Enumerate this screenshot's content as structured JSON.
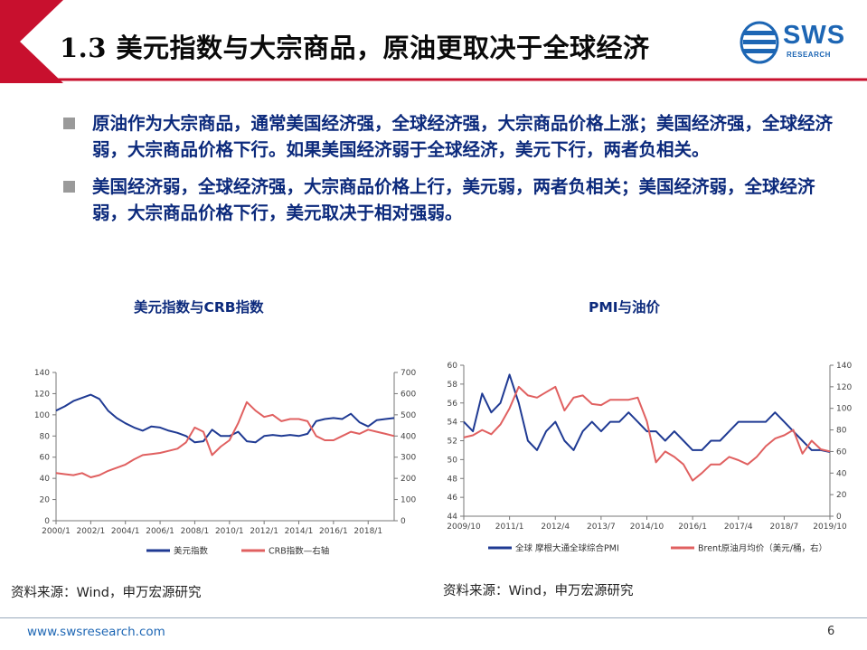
{
  "header": {
    "title": "1.3 美元指数与大宗商品，原油更取决于全球经济"
  },
  "logo": {
    "text": "SWS",
    "sub": "RESEARCH"
  },
  "bullets": [
    "原油作为大宗商品，通常美国经济强，全球经济强，大宗商品价格上涨；美国经济强，全球经济弱，大宗商品价格下行。如果美国经济弱于全球经济，美元下行，两者负相关。",
    "美国经济弱，全球经济强，大宗商品价格上行，美元弱，两者负相关；美国经济弱，全球经济弱，大宗商品价格下行，美元取决于相对强弱。"
  ],
  "colors": {
    "navy": "#1f3a93",
    "red": "#e06060",
    "blue_text": "#0c2a7c",
    "header_red": "#c8102e",
    "logo_blue": "#1d66b4"
  },
  "chart_data": [
    {
      "type": "line",
      "title": "美元指数与CRB指数",
      "x_ticks": [
        "2000/1",
        "2002/1",
        "2004/1",
        "2006/1",
        "2008/1",
        "2010/1",
        "2012/1",
        "2014/1",
        "2016/1",
        "2018/1"
      ],
      "x_range": [
        2000.0,
        2019.5
      ],
      "y_left": {
        "ticks": [
          0,
          20,
          40,
          60,
          80,
          100,
          120,
          140
        ],
        "range": [
          0,
          140
        ]
      },
      "y_right": {
        "ticks": [
          0,
          100,
          200,
          300,
          400,
          500,
          600,
          700
        ],
        "range": [
          0,
          700
        ]
      },
      "legend_position": "bottom",
      "series": [
        {
          "name": "美元指数",
          "axis": "left",
          "color": "#1f3a93",
          "x": [
            2000.0,
            2000.5,
            2001.0,
            2001.5,
            2002.0,
            2002.5,
            2003.0,
            2003.5,
            2004.0,
            2004.5,
            2005.0,
            2005.5,
            2006.0,
            2006.5,
            2007.0,
            2007.5,
            2008.0,
            2008.5,
            2009.0,
            2009.5,
            2010.0,
            2010.5,
            2011.0,
            2011.5,
            2012.0,
            2012.5,
            2013.0,
            2013.5,
            2014.0,
            2014.5,
            2015.0,
            2015.5,
            2016.0,
            2016.5,
            2017.0,
            2017.5,
            2018.0,
            2018.5,
            2019.0,
            2019.5
          ],
          "values": [
            104,
            108,
            113,
            116,
            119,
            115,
            104,
            97,
            92,
            88,
            85,
            89,
            88,
            85,
            83,
            80,
            74,
            75,
            86,
            80,
            80,
            84,
            75,
            74,
            80,
            81,
            80,
            81,
            80,
            82,
            94,
            96,
            97,
            96,
            101,
            93,
            89,
            95,
            96,
            97
          ]
        },
        {
          "name": "CRB指数—右轴",
          "axis": "right",
          "color": "#e06060",
          "x": [
            2000.0,
            2000.5,
            2001.0,
            2001.5,
            2002.0,
            2002.5,
            2003.0,
            2003.5,
            2004.0,
            2004.5,
            2005.0,
            2005.5,
            2006.0,
            2006.5,
            2007.0,
            2007.5,
            2008.0,
            2008.5,
            2009.0,
            2009.5,
            2010.0,
            2010.5,
            2011.0,
            2011.5,
            2012.0,
            2012.5,
            2013.0,
            2013.5,
            2014.0,
            2014.5,
            2015.0,
            2015.5,
            2016.0,
            2016.5,
            2017.0,
            2017.5,
            2018.0,
            2018.5,
            2019.0,
            2019.5
          ],
          "values": [
            225,
            220,
            215,
            225,
            205,
            215,
            235,
            250,
            265,
            290,
            310,
            315,
            320,
            330,
            340,
            370,
            440,
            420,
            310,
            350,
            380,
            460,
            560,
            520,
            490,
            500,
            470,
            480,
            480,
            470,
            400,
            380,
            380,
            400,
            420,
            410,
            430,
            420,
            410,
            400
          ]
        }
      ],
      "source": "资料来源：Wind，申万宏源研究"
    },
    {
      "type": "line",
      "title": "PMI与油价",
      "x_ticks": [
        "2009/10",
        "2011/1",
        "2012/4",
        "2013/7",
        "2014/10",
        "2016/1",
        "2017/4",
        "2018/7",
        "2019/10"
      ],
      "x_range": [
        2009.75,
        2019.75
      ],
      "y_left": {
        "ticks": [
          44,
          46,
          48,
          50,
          52,
          54,
          56,
          58,
          60
        ],
        "range": [
          44,
          60
        ]
      },
      "y_right": {
        "ticks": [
          0,
          20,
          40,
          60,
          80,
          100,
          120,
          140
        ],
        "range": [
          0,
          140
        ]
      },
      "legend_position": "bottom",
      "series": [
        {
          "name": "全球 摩根大通全球综合PMI",
          "axis": "left",
          "color": "#1f3a93",
          "x": [
            2009.75,
            2010.0,
            2010.25,
            2010.5,
            2010.75,
            2011.0,
            2011.25,
            2011.5,
            2011.75,
            2012.0,
            2012.25,
            2012.5,
            2012.75,
            2013.0,
            2013.25,
            2013.5,
            2013.75,
            2014.0,
            2014.25,
            2014.5,
            2014.75,
            2015.0,
            2015.25,
            2015.5,
            2015.75,
            2016.0,
            2016.25,
            2016.5,
            2016.75,
            2017.0,
            2017.25,
            2017.5,
            2017.75,
            2018.0,
            2018.25,
            2018.5,
            2018.75,
            2019.0,
            2019.25,
            2019.5,
            2019.75
          ],
          "values": [
            54,
            53,
            57,
            55,
            56,
            59,
            56,
            52,
            51,
            53,
            54,
            52,
            51,
            53,
            54,
            53,
            54,
            54,
            55,
            54,
            53,
            53,
            52,
            53,
            52,
            51,
            51,
            52,
            52,
            53,
            54,
            54,
            54,
            54,
            55,
            54,
            53,
            52,
            51,
            51,
            50.8
          ]
        },
        {
          "name": "Brent原油月均价（美元/桶，右）",
          "axis": "right",
          "color": "#e06060",
          "x": [
            2009.75,
            2010.0,
            2010.25,
            2010.5,
            2010.75,
            2011.0,
            2011.25,
            2011.5,
            2011.75,
            2012.0,
            2012.25,
            2012.5,
            2012.75,
            2013.0,
            2013.25,
            2013.5,
            2013.75,
            2014.0,
            2014.25,
            2014.5,
            2014.75,
            2015.0,
            2015.25,
            2015.5,
            2015.75,
            2016.0,
            2016.25,
            2016.5,
            2016.75,
            2017.0,
            2017.25,
            2017.5,
            2017.75,
            2018.0,
            2018.25,
            2018.5,
            2018.75,
            2019.0,
            2019.25,
            2019.5,
            2019.75
          ],
          "values": [
            73,
            75,
            80,
            76,
            85,
            100,
            120,
            112,
            110,
            115,
            120,
            98,
            110,
            112,
            104,
            103,
            108,
            108,
            108,
            110,
            88,
            50,
            60,
            55,
            48,
            33,
            40,
            48,
            48,
            55,
            52,
            48,
            55,
            65,
            72,
            75,
            80,
            58,
            70,
            62,
            60
          ]
        }
      ],
      "source": "资料来源：Wind，申万宏源研究"
    }
  ],
  "footer": {
    "url": "www.swsresearch.com",
    "page": "6"
  }
}
